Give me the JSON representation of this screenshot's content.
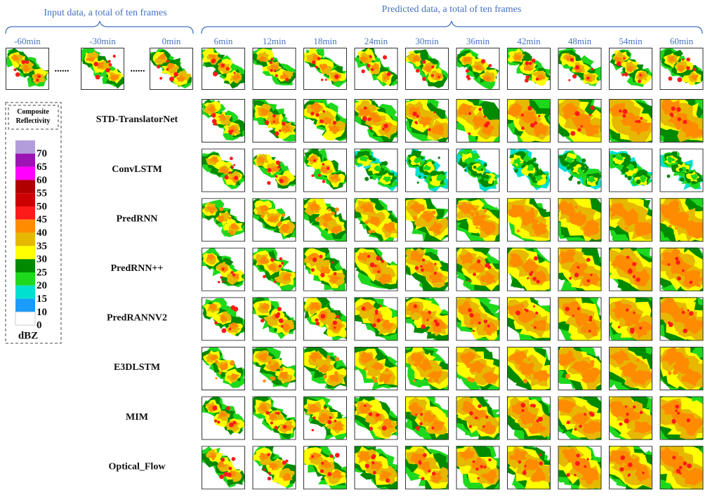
{
  "input_header": "Input data, a total of ten frames",
  "predicted_header": "Predicted data, a total of ten frames",
  "input_times": [
    "-60min",
    "-30min",
    "0min"
  ],
  "dots": [
    "......",
    "......"
  ],
  "predicted_times": [
    "6min",
    "12min",
    "18min",
    "24min",
    "30min",
    "36min",
    "42min",
    "48min",
    "54min",
    "60min"
  ],
  "models": [
    "STD-TranslatorNet",
    "ConvLSTM",
    "PredRNN",
    "PredRNN++",
    "PredRANNV2",
    "E3DLSTM",
    "MIM",
    "Optical_Flow"
  ],
  "colorbar": {
    "title": "Composite Reflectivity",
    "unit": "dBZ",
    "labels": [
      70,
      65,
      60,
      55,
      50,
      45,
      40,
      35,
      30,
      25,
      20,
      15,
      10,
      0
    ],
    "colors": [
      "#b39ddb",
      "#9c14b4",
      "#ff00ff",
      "#b00000",
      "#cc0000",
      "#ff1a1a",
      "#ff8c00",
      "#e6b800",
      "#ffff00",
      "#008a00",
      "#1ed81e",
      "#00e0d0",
      "#1a9cff",
      "#ffffff"
    ]
  }
}
